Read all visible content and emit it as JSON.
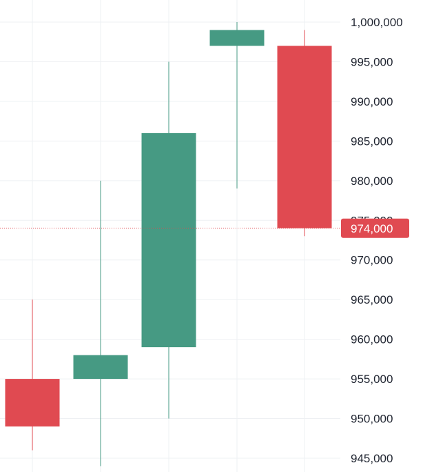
{
  "chart_data": {
    "type": "candlestick",
    "grid": true,
    "ylim": [
      944000,
      1002000
    ],
    "y_ticks": [
      945000,
      950000,
      955000,
      960000,
      965000,
      970000,
      975000,
      980000,
      985000,
      990000,
      995000,
      1000000
    ],
    "y_tick_labels": [
      "945,000",
      "950,000",
      "955,000",
      "960,000",
      "965,000",
      "970,000",
      "975,000",
      "980,000",
      "985,000",
      "990,000",
      "995,000",
      "1,000,000"
    ],
    "candles": [
      {
        "open": 955000,
        "high": 965000,
        "low": 946000,
        "close": 949000
      },
      {
        "open": 955000,
        "high": 980000,
        "low": 944000,
        "close": 958000
      },
      {
        "open": 959000,
        "high": 995000,
        "low": 950000,
        "close": 986000
      },
      {
        "open": 997000,
        "high": 1000000,
        "low": 979000,
        "close": 999000
      },
      {
        "open": 997000,
        "high": 999000,
        "low": 973000,
        "close": 974000
      }
    ],
    "last_price": 974000,
    "last_price_label": "974,000"
  },
  "colors": {
    "up": "#469a83",
    "down": "#e04a51",
    "grid": "#eef0f3",
    "axis_text": "#1f2430",
    "price_tag_bg": "#e04a51",
    "price_tag_text": "#ffffff"
  }
}
